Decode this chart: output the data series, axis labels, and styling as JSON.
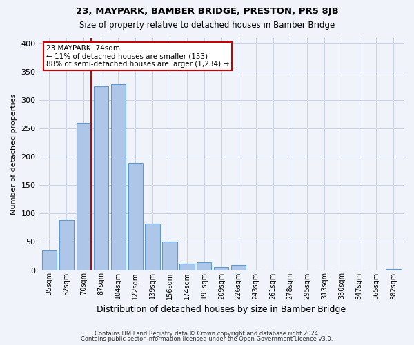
{
  "title": "23, MAYPARK, BAMBER BRIDGE, PRESTON, PR5 8JB",
  "subtitle": "Size of property relative to detached houses in Bamber Bridge",
  "xlabel": "Distribution of detached houses by size in Bamber Bridge",
  "ylabel": "Number of detached properties",
  "bar_labels": [
    "35sqm",
    "52sqm",
    "70sqm",
    "87sqm",
    "104sqm",
    "122sqm",
    "139sqm",
    "156sqm",
    "174sqm",
    "191sqm",
    "209sqm",
    "226sqm",
    "243sqm",
    "261sqm",
    "278sqm",
    "295sqm",
    "313sqm",
    "330sqm",
    "347sqm",
    "365sqm",
    "382sqm"
  ],
  "bar_values": [
    35,
    88,
    260,
    325,
    328,
    190,
    82,
    50,
    12,
    14,
    6,
    9,
    0,
    0,
    0,
    0,
    0,
    0,
    0,
    0,
    2
  ],
  "bar_color": "#aec6e8",
  "bar_edge_color": "#5b9bd5",
  "ylim": [
    0,
    410
  ],
  "yticks": [
    0,
    50,
    100,
    150,
    200,
    250,
    300,
    350,
    400
  ],
  "property_line_color": "#cc0000",
  "annotation_title": "23 MAYPARK: 74sqm",
  "annotation_line1": "← 11% of detached houses are smaller (153)",
  "annotation_line2": "88% of semi-detached houses are larger (1,234) →",
  "annotation_box_color": "#ffffff",
  "annotation_box_edge": "#cc0000",
  "bg_color": "#f0f4fa",
  "footer1": "Contains HM Land Registry data © Crown copyright and database right 2024.",
  "footer2": "Contains public sector information licensed under the Open Government Licence v3.0."
}
